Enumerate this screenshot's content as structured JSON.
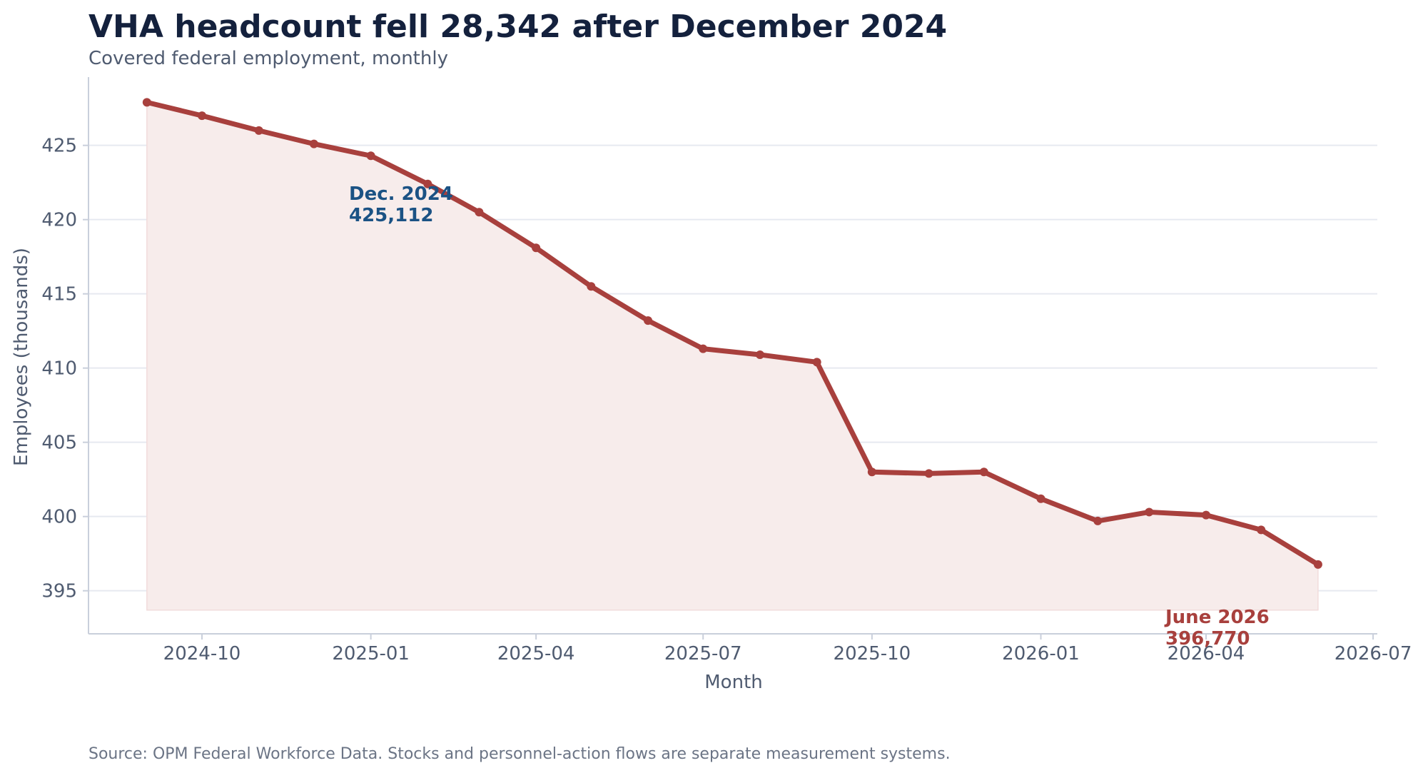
{
  "header": {
    "title": "VHA headcount fell 28,342 after December 2024",
    "subtitle": "Covered federal employment, monthly"
  },
  "footer": {
    "source": "Source: OPM Federal Workforce Data. Stocks and personnel-action flows are separate measurement systems."
  },
  "colors": {
    "line": "#a8403d",
    "fill": "#f7eceb",
    "annotation_dec": "#1b5284",
    "annotation_june": "#a8403d",
    "grid": "#e6e9f0",
    "axis": "#c9cfdb"
  },
  "chart_data": {
    "type": "line",
    "xlabel": "Month",
    "ylabel": "Employees (thousands)",
    "ylim": [
      392.1,
      429.6
    ],
    "yticks": [
      395,
      400,
      405,
      410,
      415,
      420,
      425
    ],
    "xticks": [
      "2024-10",
      "2025-01",
      "2025-04",
      "2025-07",
      "2025-10",
      "2026-01",
      "2026-04",
      "2026-07"
    ],
    "grid": "horizontal",
    "area_baseline": 393.7,
    "x": [
      "2024-09",
      "2024-10",
      "2024-11",
      "2024-12",
      "2025-01",
      "2025-02",
      "2025-03",
      "2025-04",
      "2025-05",
      "2025-06",
      "2025-07",
      "2025-08",
      "2025-09",
      "2025-10",
      "2025-11",
      "2025-12",
      "2026-01",
      "2026-02",
      "2026-03",
      "2026-04",
      "2026-05",
      "2026-06"
    ],
    "series": [
      {
        "values": [
          427.9,
          427.0,
          426.0,
          425.1,
          424.3,
          422.4,
          420.5,
          418.1,
          415.5,
          413.2,
          411.3,
          410.9,
          410.4,
          403.0,
          402.9,
          403.0,
          401.2,
          399.7,
          400.3,
          400.1,
          399.1,
          396.77
        ]
      }
    ],
    "annotations": [
      {
        "lines": [
          "Dec. 2024",
          "425,112"
        ],
        "x": "2024-12",
        "y": 425.112,
        "color_key": "annotation_dec"
      },
      {
        "lines": [
          "June 2026",
          "396,770"
        ],
        "x": "2026-06",
        "y": 396.77,
        "color_key": "annotation_june"
      }
    ]
  }
}
